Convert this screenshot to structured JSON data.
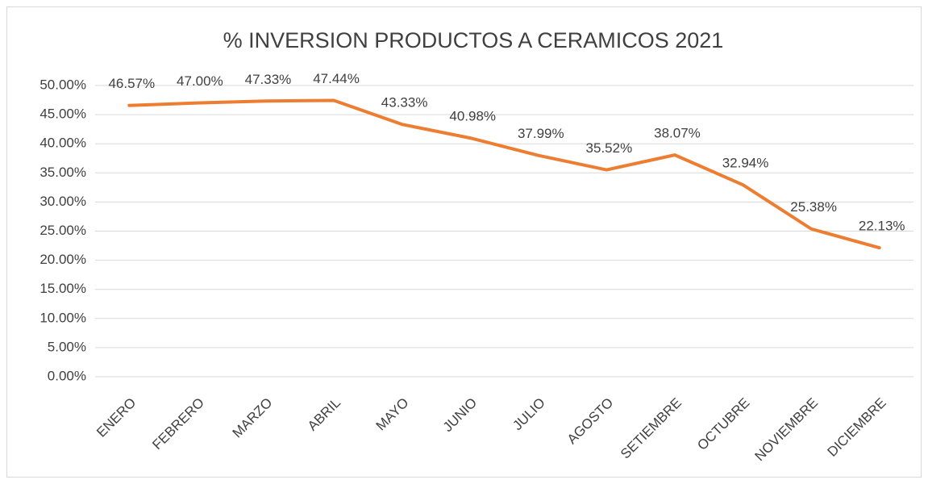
{
  "chart_data": {
    "type": "line",
    "title": "% INVERSION PRODUCTOS A CERAMICOS 2021",
    "categories": [
      "ENERO",
      "FEBRERO",
      "MARZO",
      "ABRIL",
      "MAYO",
      "JUNIO",
      "JULIO",
      "AGOSTO",
      "SETIEMBRE",
      "OCTUBRE",
      "NOVIEMBRE",
      "DICIEMBRE"
    ],
    "values": [
      46.57,
      47.0,
      47.33,
      47.44,
      43.33,
      40.98,
      37.99,
      35.52,
      38.07,
      32.94,
      25.38,
      22.13
    ],
    "value_labels": [
      "46.57%",
      "47.00%",
      "47.33%",
      "47.44%",
      "43.33%",
      "40.98%",
      "37.99%",
      "35.52%",
      "38.07%",
      "32.94%",
      "25.38%",
      "22.13%"
    ],
    "color": "#ed7d31",
    "ylim": [
      0,
      50
    ],
    "yticks": [
      {
        "value": 0,
        "label": "0.00%"
      },
      {
        "value": 5,
        "label": "5.00%"
      },
      {
        "value": 10,
        "label": "10.00%"
      },
      {
        "value": 15,
        "label": "15.00%"
      },
      {
        "value": 20,
        "label": "20.00%"
      },
      {
        "value": 25,
        "label": "25.00%"
      },
      {
        "value": 30,
        "label": "30.00%"
      },
      {
        "value": 35,
        "label": "35.00%"
      },
      {
        "value": 40,
        "label": "40.00%"
      },
      {
        "value": 45,
        "label": "45.00%"
      },
      {
        "value": 50,
        "label": "50.00%"
      }
    ],
    "grid": true
  }
}
